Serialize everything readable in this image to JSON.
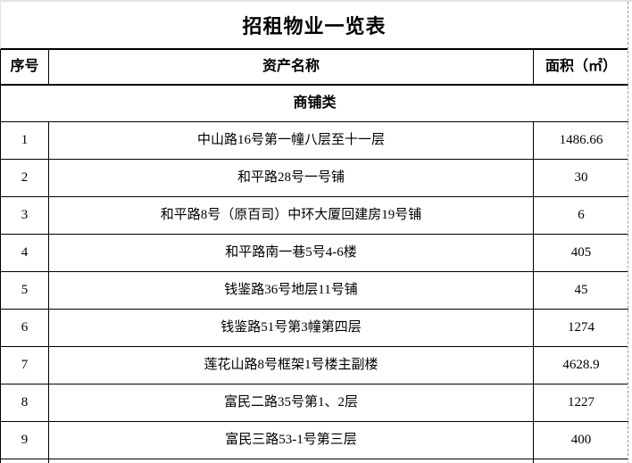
{
  "title": "招租物业一览表",
  "table": {
    "columns": [
      "序号",
      "资产名称",
      "面积（㎡）"
    ],
    "section_label": "商铺类",
    "rows": [
      {
        "no": "1",
        "name": "中山路16号第一幢八层至十一层",
        "area": "1486.66"
      },
      {
        "no": "2",
        "name": "和平路28号一号铺",
        "area": "30"
      },
      {
        "no": "3",
        "name": "和平路8号（原百司）中环大厦回建房19号铺",
        "area": "6"
      },
      {
        "no": "4",
        "name": "和平路南一巷5号4-6楼",
        "area": "405"
      },
      {
        "no": "5",
        "name": "钱鉴路36号地层11号铺",
        "area": "45"
      },
      {
        "no": "6",
        "name": "钱鉴路51号第3幢第四层",
        "area": "1274"
      },
      {
        "no": "7",
        "name": "莲花山路8号框架1号楼主副楼",
        "area": "4628.9"
      },
      {
        "no": "8",
        "name": "富民二路35号第1、2层",
        "area": "1227"
      },
      {
        "no": "9",
        "name": "富民三路53-1号第三层",
        "area": "400"
      }
    ]
  },
  "colors": {
    "text": "#000000",
    "table_border": "#000000",
    "page_gridline_dashed": "#9a9a9a",
    "background": "#ffffff"
  }
}
